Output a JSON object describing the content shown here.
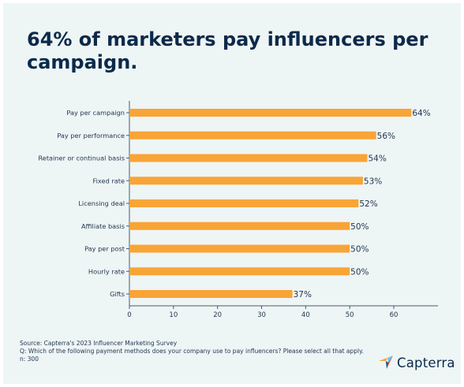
{
  "title": "64% of marketers pay influencers per campaign.",
  "chart_data": {
    "type": "bar",
    "orientation": "horizontal",
    "categories": [
      "Pay per campaign",
      "Pay per performance",
      "Retainer or continual basis",
      "Fixed rate",
      "Licensing deal",
      "Affiliate basis",
      "Pay per post",
      "Hourly rate",
      "Gifts"
    ],
    "values": [
      64,
      56,
      54,
      53,
      52,
      50,
      50,
      50,
      37
    ],
    "value_labels": [
      "64%",
      "56%",
      "54%",
      "53%",
      "52%",
      "50%",
      "50%",
      "50%",
      "37%"
    ],
    "xlim": [
      0,
      70
    ],
    "xticks": [
      0,
      10,
      20,
      30,
      40,
      50,
      60
    ],
    "grid": false,
    "bar_color": "#f9a436"
  },
  "footer": {
    "source": "Source: Capterra's 2023 Influencer Marketing Survey",
    "question": "Q: Which of the following payment methods does your company use to pay influencers? Please select all that apply.",
    "n": "n: 300"
  },
  "logo": {
    "text": "Capterra",
    "colors": [
      "#ff9d28",
      "#68c5ed",
      "#044d80",
      "#e54747"
    ]
  },
  "colors": {
    "background": "#eef5f5",
    "title": "#0b2a4a",
    "axis": "#4a5a6a"
  }
}
